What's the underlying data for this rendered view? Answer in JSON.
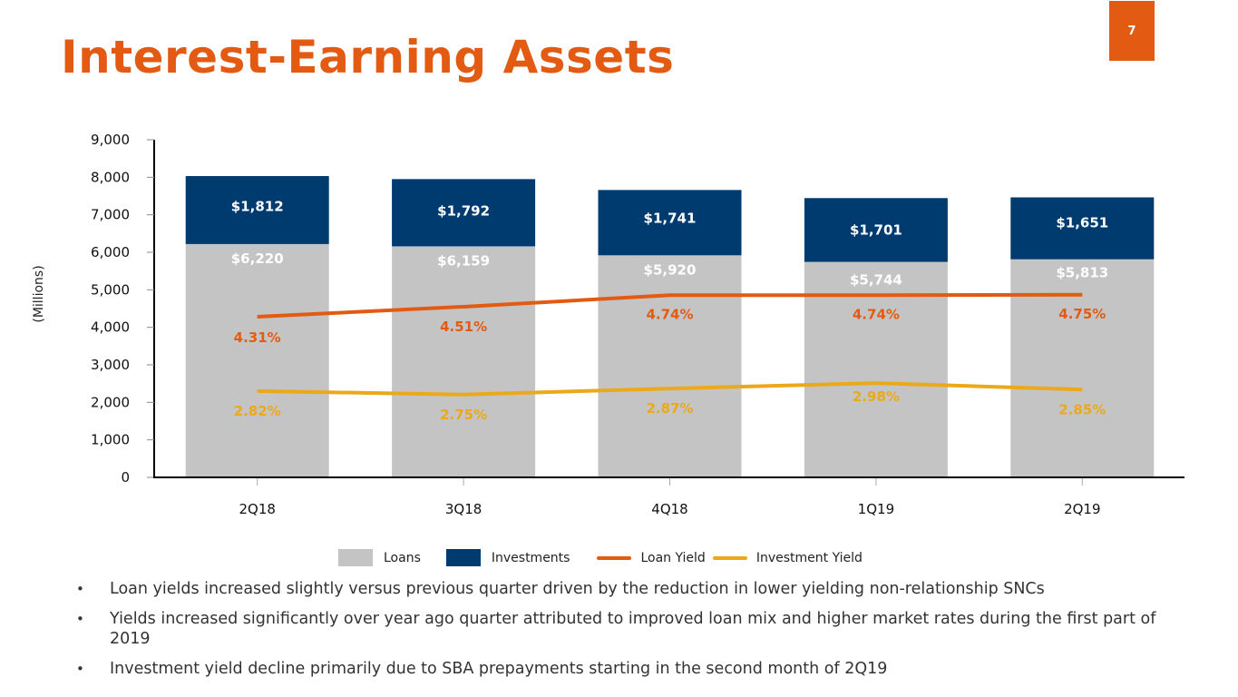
{
  "slide": {
    "title": "Interest-Earning Assets",
    "page_number": "7"
  },
  "colors": {
    "accent": "#e35b12",
    "loans": "#c4c4c4",
    "investments": "#003b70",
    "loan_yield": "#e35b12",
    "investment_yield": "#eba91a"
  },
  "chart_data": {
    "type": "bar",
    "stacked": true,
    "title": "",
    "xlabel": "",
    "ylabel": "(Millions)",
    "ylim": [
      0,
      9000
    ],
    "yticks": [
      0,
      1000,
      2000,
      3000,
      4000,
      5000,
      6000,
      7000,
      8000,
      9000
    ],
    "ytick_labels": [
      "0",
      "1,000",
      "2,000",
      "3,000",
      "4,000",
      "5,000",
      "6,000",
      "7,000",
      "8,000",
      "9,000"
    ],
    "categories": [
      "2Q18",
      "3Q18",
      "4Q18",
      "1Q19",
      "2Q19"
    ],
    "series": [
      {
        "name": "Loans",
        "type": "bar",
        "values": [
          6220,
          6159,
          5920,
          5744,
          5813
        ],
        "labels": [
          "$6,220",
          "$6,159",
          "$5,920",
          "$5,744",
          "$5,813"
        ]
      },
      {
        "name": "Investments",
        "type": "bar",
        "values": [
          1812,
          1792,
          1741,
          1701,
          1651
        ],
        "labels": [
          "$1,812",
          "$1,792",
          "$1,741",
          "$1,701",
          "$1,651"
        ]
      },
      {
        "name": "Loan Yield",
        "type": "line",
        "axis": "secondary",
        "values": [
          4.31,
          4.51,
          4.74,
          4.74,
          4.75
        ],
        "labels": [
          "4.31%",
          "4.51%",
          "4.74%",
          "4.74%",
          "4.75%"
        ]
      },
      {
        "name": "Investment Yield",
        "type": "line",
        "axis": "secondary",
        "values": [
          2.82,
          2.75,
          2.87,
          2.98,
          2.85
        ],
        "labels": [
          "2.82%",
          "2.75%",
          "2.87%",
          "2.98%",
          "2.85%"
        ]
      }
    ],
    "secondary_axis_visible": false,
    "grid": false,
    "legend": {
      "position": "bottom",
      "entries": [
        "Loans",
        "Investments",
        "Loan Yield",
        "Investment Yield"
      ]
    }
  },
  "bullets": [
    "Loan yields increased slightly versus previous quarter driven by the reduction in lower yielding non-relationship SNCs",
    "Yields increased significantly over year ago quarter attributed to improved loan mix and higher market rates during the first part of 2019",
    "Investment yield decline primarily due to SBA prepayments starting in the second month of 2Q19"
  ],
  "bullet_glyph": "•"
}
